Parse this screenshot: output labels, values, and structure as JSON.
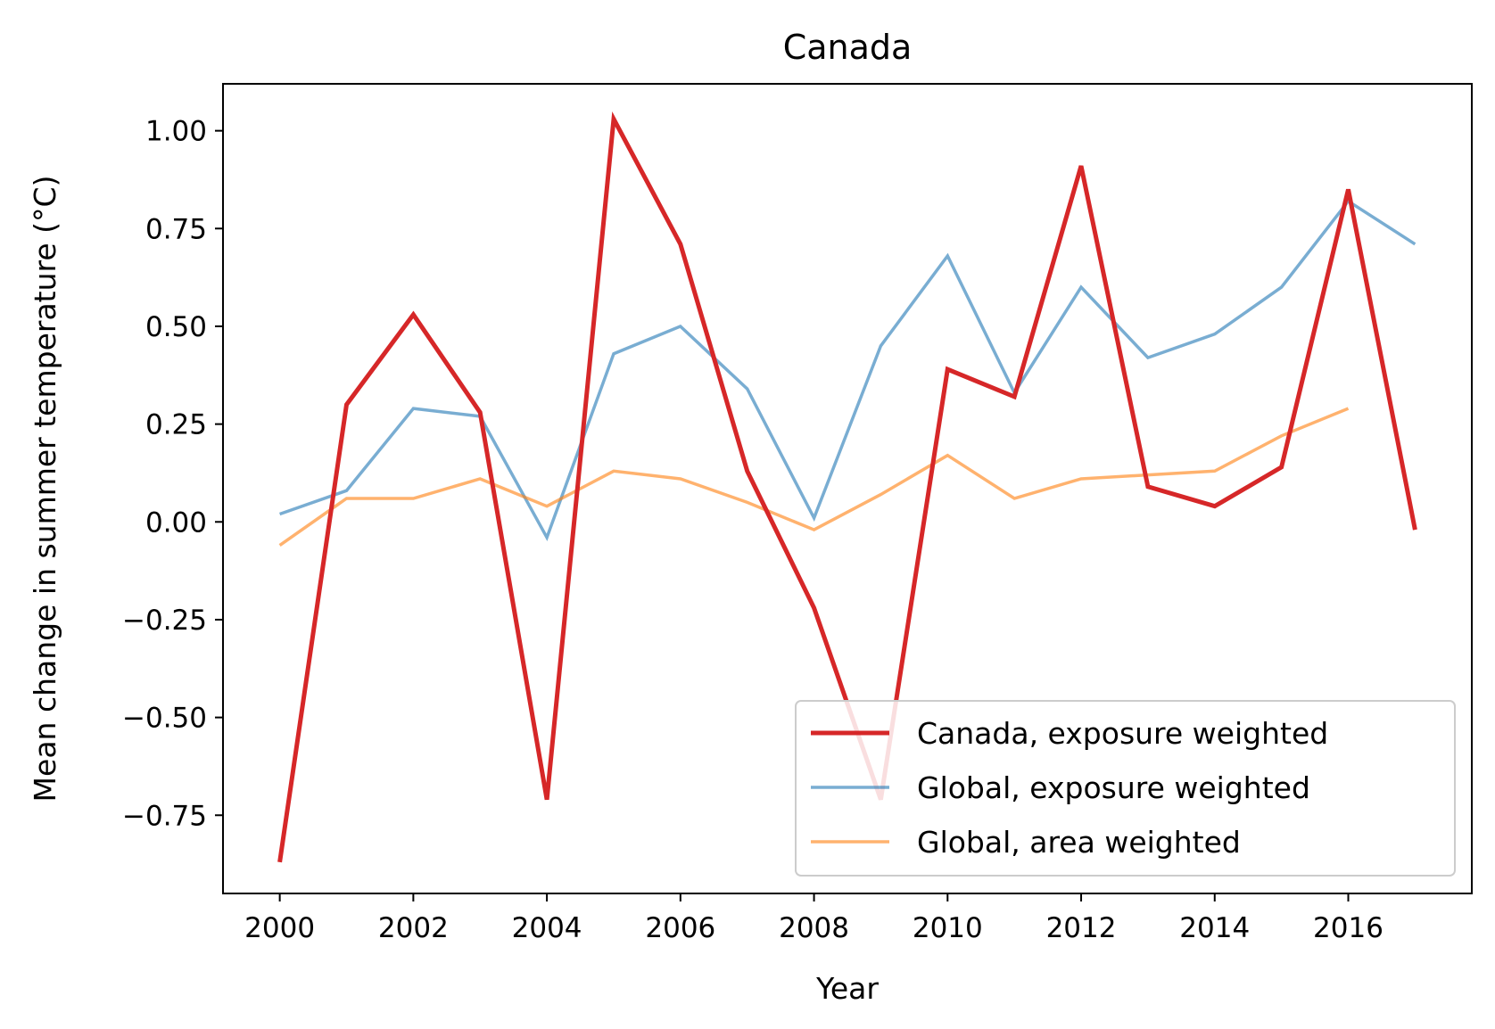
{
  "chart_data": {
    "type": "line",
    "title": "Canada",
    "xlabel": "Year",
    "ylabel": "Mean change in summer temperature (°C)",
    "x": [
      2000,
      2001,
      2002,
      2003,
      2004,
      2005,
      2006,
      2007,
      2008,
      2009,
      2010,
      2011,
      2012,
      2013,
      2014,
      2015,
      2016,
      2017
    ],
    "xlim": [
      1999.15,
      2017.85
    ],
    "ylim": [
      -0.95,
      1.12
    ],
    "xticks": [
      2000,
      2002,
      2004,
      2006,
      2008,
      2010,
      2012,
      2014,
      2016
    ],
    "xtick_labels": [
      "2000",
      "2002",
      "2004",
      "2006",
      "2008",
      "2010",
      "2012",
      "2014",
      "2016"
    ],
    "yticks": [
      -0.75,
      -0.5,
      -0.25,
      0.0,
      0.25,
      0.5,
      0.75,
      1.0
    ],
    "ytick_labels": [
      "−0.75",
      "−0.50",
      "−0.25",
      "0.00",
      "0.25",
      "0.50",
      "0.75",
      "1.00"
    ],
    "grid": false,
    "legend_position": "lower-right",
    "series": [
      {
        "name": "Canada, exposure weighted",
        "color": "#d62728",
        "opacity": 1.0,
        "values": [
          -0.87,
          0.3,
          0.53,
          0.28,
          -0.71,
          1.03,
          0.71,
          0.13,
          -0.22,
          -0.71,
          0.39,
          0.32,
          0.91,
          0.09,
          0.04,
          0.14,
          0.85,
          -0.02
        ]
      },
      {
        "name": "Global, exposure weighted",
        "color": "#1f77b4",
        "opacity": 0.6,
        "values": [
          0.02,
          0.08,
          0.29,
          0.27,
          -0.04,
          0.43,
          0.5,
          0.34,
          0.01,
          0.45,
          0.68,
          0.33,
          0.6,
          0.42,
          0.48,
          0.6,
          0.82,
          0.71
        ]
      },
      {
        "name": "Global, area weighted",
        "color": "#ff7f0e",
        "opacity": 0.6,
        "values": [
          -0.06,
          0.06,
          0.06,
          0.11,
          0.04,
          0.13,
          0.11,
          0.05,
          -0.02,
          0.07,
          0.17,
          0.06,
          0.11,
          0.12,
          0.13,
          0.22,
          0.29,
          null
        ]
      }
    ]
  }
}
